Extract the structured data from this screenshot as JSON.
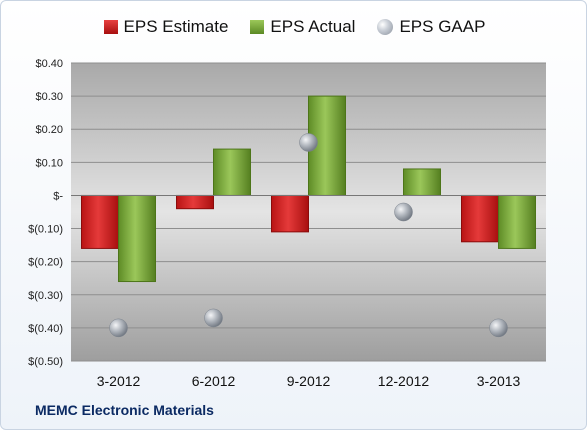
{
  "chart_data": {
    "type": "bar",
    "categories": [
      "3-2012",
      "6-2012",
      "9-2012",
      "12-2012",
      "3-2013"
    ],
    "series": [
      {
        "name": "EPS Estimate",
        "kind": "bar",
        "color": "#d42a2a",
        "values": [
          -0.16,
          -0.04,
          -0.11,
          null,
          -0.14
        ]
      },
      {
        "name": "EPS Actual",
        "kind": "bar",
        "color": "#7fae3f",
        "values": [
          -0.26,
          0.14,
          0.3,
          0.08,
          -0.16
        ]
      },
      {
        "name": "EPS GAAP",
        "kind": "point",
        "color": "#a0a6ae",
        "values": [
          -0.4,
          -0.37,
          0.16,
          -0.05,
          -0.4
        ]
      }
    ],
    "ylim": [
      -0.5,
      0.4
    ],
    "yticks": [
      0.4,
      0.3,
      0.2,
      0.1,
      0.0,
      -0.1,
      -0.2,
      -0.3,
      -0.4,
      -0.5
    ],
    "ytick_labels": [
      "$0.40",
      "$0.30",
      "$0.20",
      "$0.10",
      "$-",
      "$(0.10)",
      "$(0.20)",
      "$(0.30)",
      "$(0.40)",
      "$(0.50)"
    ],
    "grid": true,
    "legend": "top"
  },
  "footer": {
    "company": "MEMC Electronic Materials"
  }
}
